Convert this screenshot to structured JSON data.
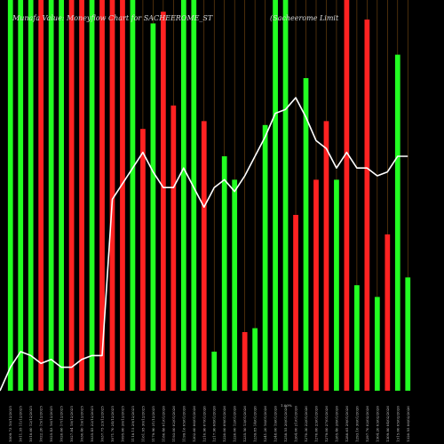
{
  "chart_data": {
    "type": "bar",
    "title_left": "Munafa Value: Moneyflow Chart for SACHEEROME_ST",
    "title_right": "(Sacheerome Limit",
    "ylim": [
      0,
      100
    ],
    "line_ylim": [
      0,
      100
    ],
    "colors": {
      "background": "#000000",
      "up": "#22ff22",
      "down": "#ff2222",
      "line": "#ffffff",
      "guide": "#7a4a12"
    },
    "categories": [
      "1009.73 10/12/2025",
      "1011.35 11/12/2025",
      "1018.60 12/12/2025",
      "1022.20 15/12/2025",
      "1025.43 16/12/2025",
      "1026.66 17/12/2025",
      "1027.84 18/12/2025",
      "1030.40 19/12/2025",
      "1035.45 22/12/2025",
      "1037.75 23/12/2025",
      "1071.70 24/12/2025",
      "1095.60 26/12/2025",
      "1118.15 29/12/2025",
      "1161.95 30/12/2025",
      "1179.90 31/12/2025",
      "1186.46 01/01/2026",
      "1193.00 02/01/2026",
      "1199.16 05/01/2026",
      "1202.60 06/01/2026",
      "1210.90 07/01/2026",
      "1217.90 08/01/2026",
      "1220.00 09/01/2026",
      "1226.00 12/01/2026",
      "1235.50 13/01/2026",
      "1239.85 14/01/2026",
      "1241.20 16/01/2026",
      "1248.00 19/01/2026",
      "1258.55 20/01/2026",
      "1264.00 21/01/2026",
      "1270.30 22/01/2026",
      "1276.60 23/01/2026",
      "1279.00 27/01/2026",
      "1285.40 28/01/2026",
      "1288.65 29/01/2026",
      "1293.10 30/01/2026",
      "1297.70 02/02/2026",
      "1304.20 03/02/2026",
      "1309.80 04/02/2026",
      "1315.00 05/02/2026",
      "1320.55 06/02/2026"
    ],
    "series": [
      {
        "type": "bar",
        "values": [
          100,
          100,
          100,
          100,
          100,
          100,
          100,
          100,
          100,
          100,
          100,
          100,
          100,
          67,
          94,
          97,
          73,
          100,
          100,
          69,
          10,
          60,
          54,
          15,
          16,
          68,
          100,
          100,
          45,
          80,
          54,
          69,
          54,
          100,
          27,
          95,
          24,
          40,
          86,
          29
        ],
        "directions": [
          "up",
          "up",
          "up",
          "down",
          "up",
          "up",
          "down",
          "down",
          "up",
          "down",
          "down",
          "down",
          "up",
          "down",
          "up",
          "down",
          "down",
          "up",
          "up",
          "down",
          "up",
          "up",
          "up",
          "down",
          "up",
          "up",
          "up",
          "up",
          "down",
          "up",
          "down",
          "down",
          "up",
          "down",
          "up",
          "down",
          "up",
          "down",
          "up",
          "up"
        ]
      },
      {
        "type": "line",
        "values": [
          6,
          10,
          9,
          7,
          8,
          6,
          6,
          8,
          9,
          9,
          49,
          53,
          57,
          61,
          56,
          52,
          52,
          57,
          52,
          47,
          52,
          54,
          51,
          55,
          60,
          65,
          71,
          72,
          75,
          70,
          64,
          62,
          57,
          61,
          57,
          57,
          55,
          56,
          60,
          60
        ]
      }
    ],
    "extra_label": "1.00%"
  }
}
